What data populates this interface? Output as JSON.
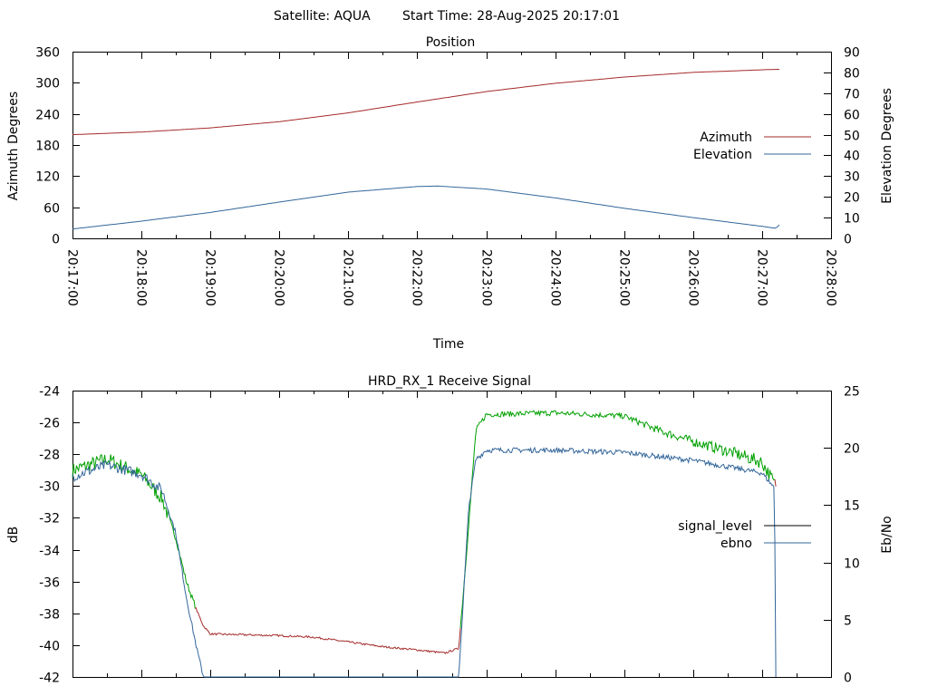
{
  "header": {
    "satellite": "Satellite: AQUA",
    "start_time": "Start Time: 28-Aug-2025 20:17:01"
  },
  "colors": {
    "azimuth": "#a52a2a",
    "elevation": "#336699",
    "signal_level_legend": "#000000",
    "ebno": "#336699",
    "signal_green": "#00a000",
    "signal_red": "#a52a2a"
  },
  "chart_data": [
    {
      "type": "line",
      "title": "Position",
      "xlabel": "Time",
      "ylabel": "Azimuth Degrees",
      "y2label": "Elevation Degrees",
      "x_ticks": [
        "20:17:00",
        "20:18:00",
        "20:19:00",
        "20:20:00",
        "20:21:00",
        "20:22:00",
        "20:23:00",
        "20:24:00",
        "20:25:00",
        "20:26:00",
        "20:27:00",
        "20:28:00"
      ],
      "xlim_minutes": [
        0,
        11
      ],
      "ylim": [
        0,
        360
      ],
      "y_ticks": [
        0,
        60,
        120,
        180,
        240,
        300,
        360
      ],
      "y2lim": [
        0,
        90
      ],
      "y2_ticks": [
        0,
        10,
        20,
        30,
        40,
        50,
        60,
        70,
        80,
        90
      ],
      "legend_placement": "right",
      "series": [
        {
          "name": "Azimuth",
          "axis": "y",
          "x_minutes": [
            0.0,
            1.0,
            2.0,
            3.0,
            4.0,
            5.0,
            6.0,
            7.0,
            8.0,
            9.0,
            10.0,
            10.25
          ],
          "values": [
            200,
            205,
            213,
            225,
            242,
            263,
            283,
            299,
            311,
            320,
            325,
            326
          ]
        },
        {
          "name": "Elevation",
          "axis": "y2",
          "x_minutes": [
            0.0,
            1.0,
            2.0,
            3.0,
            4.0,
            5.0,
            5.3,
            6.0,
            7.0,
            8.0,
            9.0,
            10.0,
            10.2,
            10.25
          ],
          "values": [
            4.5,
            8.3,
            12.5,
            17.5,
            22.3,
            25.0,
            25.2,
            23.8,
            19.5,
            14.5,
            10.0,
            5.8,
            4.8,
            6.5
          ]
        }
      ]
    },
    {
      "type": "line",
      "title": "HRD_RX_1 Receive Signal",
      "ylabel": "dB",
      "y2label": "Eb/No",
      "xlim_minutes": [
        0,
        11
      ],
      "ylim": [
        -42,
        -24
      ],
      "y_ticks": [
        -42,
        -40,
        -38,
        -36,
        -34,
        -32,
        -30,
        -28,
        -26,
        -24
      ],
      "y2lim": [
        0,
        25
      ],
      "y2_ticks": [
        0,
        5,
        10,
        15,
        20,
        25
      ],
      "legend_placement": "right",
      "series": [
        {
          "name": "signal_level",
          "axis": "y",
          "x_minutes": [
            0.0,
            0.5,
            1.0,
            1.3,
            1.5,
            1.65,
            1.8,
            1.9,
            2.0,
            3.0,
            3.5,
            4.0,
            4.5,
            5.0,
            5.4,
            5.6,
            5.7,
            5.85,
            6.0,
            7.0,
            8.0,
            8.5,
            9.0,
            9.5,
            10.0,
            10.2
          ],
          "values": [
            -29.0,
            -28.3,
            -29.3,
            -30.8,
            -33.3,
            -36.0,
            -37.8,
            -38.8,
            -39.3,
            -39.4,
            -39.5,
            -39.8,
            -40.1,
            -40.3,
            -40.5,
            -40.2,
            -35.0,
            -26.5,
            -25.5,
            -25.4,
            -25.6,
            -26.5,
            -27.2,
            -27.8,
            -28.5,
            -30.0
          ]
        },
        {
          "name": "ebno",
          "axis": "y2",
          "x_minutes": [
            0.0,
            0.5,
            1.0,
            1.3,
            1.5,
            1.65,
            1.8,
            1.9,
            5.6,
            5.65,
            5.75,
            5.85,
            6.0,
            7.0,
            8.0,
            9.0,
            10.0,
            10.18,
            10.2
          ],
          "values": [
            17.5,
            18.5,
            17.7,
            16.3,
            12.5,
            7.0,
            2.5,
            0.0,
            0.0,
            5.0,
            15.0,
            19.0,
            19.8,
            19.8,
            19.6,
            18.9,
            17.8,
            16.5,
            0.0
          ]
        }
      ]
    }
  ]
}
